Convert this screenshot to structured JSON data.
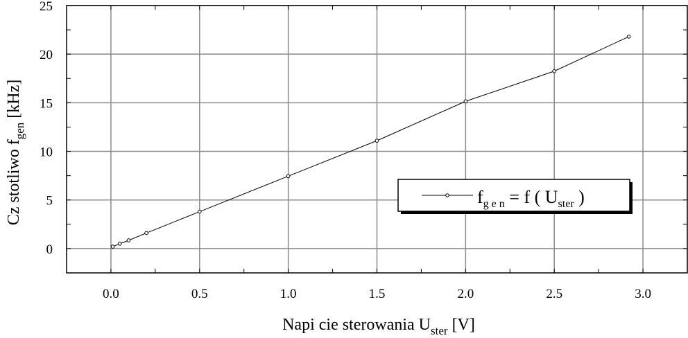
{
  "chart_data": {
    "type": "line",
    "title": "",
    "xlabel": {
      "prefix": "Napi  cie sterowania  U",
      "subscript": "ster",
      "suffix": "  [V]"
    },
    "ylabel": {
      "prefix": "Cz stotliwo    f",
      "subscript": "gen",
      "suffix": "  [kHz]"
    },
    "xlim": [
      -0.25,
      3.25
    ],
    "ylim": [
      -2.5,
      25
    ],
    "xticks": [
      0.0,
      0.5,
      1.0,
      1.5,
      2.0,
      2.5,
      3.0
    ],
    "xtick_labels": [
      "0.0",
      "0.5",
      "1.0",
      "1.5",
      "2.0",
      "2.5",
      "3.0"
    ],
    "yticks": [
      0,
      5,
      10,
      15,
      20,
      25
    ],
    "ytick_labels": [
      "0",
      "5",
      "10",
      "15",
      "20",
      "25"
    ],
    "grid": true,
    "legend_position": "center-right",
    "series": [
      {
        "name": "f_gen = f ( U_ster )",
        "legend": {
          "f": "f",
          "sub1": "g e n",
          "mid": " = f ( U",
          "sub2": "ster",
          "end": " )"
        },
        "color": "#000000",
        "marker": "circle",
        "x": [
          0.01,
          0.05,
          0.1,
          0.2,
          0.5,
          1.0,
          1.5,
          2.0,
          2.5,
          2.92
        ],
        "y": [
          0.2,
          0.5,
          0.85,
          1.6,
          3.8,
          7.45,
          11.1,
          15.15,
          18.25,
          21.8
        ]
      }
    ]
  }
}
